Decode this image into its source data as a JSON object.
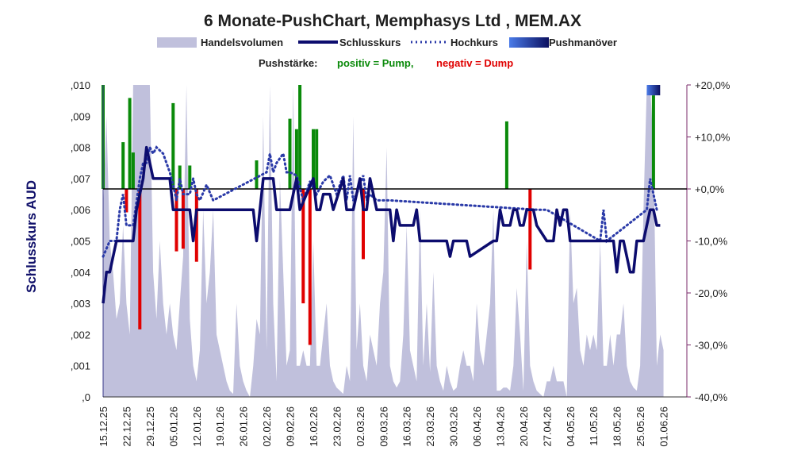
{
  "chart_data": {
    "type": "combo",
    "title": "6 Monate-PushChart, Memphasys Ltd , MEM.AX",
    "legend": [
      {
        "label": "Handelsvolumen",
        "kind": "area",
        "color": "#c0c0dc"
      },
      {
        "label": "Schlusskurs",
        "kind": "line",
        "color": "#0c0c6e"
      },
      {
        "label": "Hochkurs",
        "kind": "dotted",
        "color": "#2a3aa8"
      },
      {
        "label": "Pushmanöver",
        "kind": "gradient",
        "color": "#1a237e"
      }
    ],
    "pushstaerke": {
      "label": "Pushstärke:",
      "positive": "positiv = Pump,",
      "negative": "negativ = Dump",
      "pos_color": "#0a8a0a",
      "neg_color": "#e00000"
    },
    "ylabel": "Schlusskurs AUD",
    "y_left": {
      "min": 0,
      "max": 0.01,
      "ticks": [
        ",0",
        ",001",
        ",002",
        ",003",
        ",004",
        ",005",
        ",006",
        ",007",
        ",008",
        ",009",
        ",010"
      ]
    },
    "y_right": {
      "min": -40,
      "max": 20,
      "ticks": [
        "-40,0%",
        "-30,0%",
        "-20,0%",
        "-10,0%",
        "+0,0%",
        "+10,0%",
        "+20,0%"
      ]
    },
    "x_labels": [
      "15.12.25",
      "22.12.25",
      "29.12.25",
      "05.01.26",
      "12.01.26",
      "19.01.26",
      "26.01.26",
      "02.02.26",
      "09.02.26",
      "16.02.26",
      "23.02.26",
      "02.03.26",
      "09.03.26",
      "16.03.26",
      "23.03.26",
      "30.03.26",
      "06.04.26",
      "13.04.26",
      "20.04.26",
      "27.04.26",
      "04.05.26",
      "11.05.26",
      "18.05.26",
      "25.05.26",
      "01.06.26"
    ],
    "x_day_span": [
      0,
      175
    ],
    "close": [
      [
        0,
        0.003
      ],
      [
        1,
        0.004
      ],
      [
        2,
        0.004
      ],
      [
        3,
        0.0045
      ],
      [
        4,
        0.005
      ],
      [
        7,
        0.005
      ],
      [
        9,
        0.005
      ],
      [
        10,
        0.006
      ],
      [
        12,
        0.007
      ],
      [
        13,
        0.008
      ],
      [
        14,
        0.0075
      ],
      [
        15,
        0.007
      ],
      [
        20,
        0.007
      ],
      [
        21,
        0.006
      ],
      [
        26,
        0.006
      ],
      [
        27,
        0.005
      ],
      [
        28,
        0.006
      ],
      [
        45,
        0.006
      ],
      [
        46,
        0.005
      ],
      [
        48,
        0.007
      ],
      [
        51,
        0.007
      ],
      [
        52,
        0.006
      ],
      [
        56,
        0.006
      ],
      [
        58,
        0.007
      ],
      [
        59,
        0.006
      ],
      [
        61,
        0.0065
      ],
      [
        63,
        0.007
      ],
      [
        64,
        0.006
      ],
      [
        65,
        0.006
      ],
      [
        66,
        0.0065
      ],
      [
        68,
        0.0065
      ],
      [
        69,
        0.006
      ],
      [
        72,
        0.007
      ],
      [
        73,
        0.006
      ],
      [
        75,
        0.006
      ],
      [
        77,
        0.007
      ],
      [
        78,
        0.006
      ],
      [
        79,
        0.006
      ],
      [
        80,
        0.007
      ],
      [
        82,
        0.006
      ],
      [
        86,
        0.006
      ],
      [
        87,
        0.005
      ],
      [
        88,
        0.006
      ],
      [
        89,
        0.0055
      ],
      [
        93,
        0.0055
      ],
      [
        94,
        0.006
      ],
      [
        95,
        0.005
      ],
      [
        103,
        0.005
      ],
      [
        104,
        0.0045
      ],
      [
        105,
        0.005
      ],
      [
        109,
        0.005
      ],
      [
        110,
        0.0045
      ],
      [
        117,
        0.005
      ],
      [
        118,
        0.005
      ],
      [
        119,
        0.006
      ],
      [
        120,
        0.0055
      ],
      [
        122,
        0.0055
      ],
      [
        123,
        0.006
      ],
      [
        124,
        0.006
      ],
      [
        125,
        0.0055
      ],
      [
        126,
        0.0055
      ],
      [
        127,
        0.006
      ],
      [
        129,
        0.006
      ],
      [
        130,
        0.0055
      ],
      [
        133,
        0.005
      ],
      [
        134,
        0.005
      ],
      [
        135,
        0.005
      ],
      [
        136,
        0.006
      ],
      [
        137,
        0.0055
      ],
      [
        138,
        0.006
      ],
      [
        139,
        0.006
      ],
      [
        140,
        0.005
      ],
      [
        147,
        0.005
      ],
      [
        148,
        0.005
      ],
      [
        149,
        0.005
      ],
      [
        150,
        0.005
      ],
      [
        153,
        0.005
      ],
      [
        154,
        0.004
      ],
      [
        155,
        0.005
      ],
      [
        156,
        0.005
      ],
      [
        157,
        0.0045
      ],
      [
        158,
        0.004
      ],
      [
        159,
        0.004
      ],
      [
        160,
        0.005
      ],
      [
        162,
        0.005
      ],
      [
        164,
        0.006
      ],
      [
        165,
        0.006
      ],
      [
        166,
        0.0055
      ],
      [
        167,
        0.0055
      ]
    ],
    "high": [
      [
        0,
        0.0045
      ],
      [
        2,
        0.005
      ],
      [
        4,
        0.005
      ],
      [
        5,
        0.006
      ],
      [
        6,
        0.0065
      ],
      [
        7,
        0.0055
      ],
      [
        9,
        0.0055
      ],
      [
        11,
        0.007
      ],
      [
        12,
        0.0075
      ],
      [
        13,
        0.0075
      ],
      [
        14,
        0.008
      ],
      [
        15,
        0.0078
      ],
      [
        16,
        0.008
      ],
      [
        18,
        0.0078
      ],
      [
        19,
        0.0075
      ],
      [
        20,
        0.0072
      ],
      [
        21,
        0.0068
      ],
      [
        22,
        0.0063
      ],
      [
        23,
        0.007
      ],
      [
        24,
        0.0065
      ],
      [
        26,
        0.0065
      ],
      [
        27,
        0.007
      ],
      [
        28,
        0.0065
      ],
      [
        29,
        0.0063
      ],
      [
        31,
        0.0068
      ],
      [
        33,
        0.0063
      ],
      [
        49,
        0.0072
      ],
      [
        50,
        0.0078
      ],
      [
        51,
        0.0072
      ],
      [
        52,
        0.0075
      ],
      [
        54,
        0.0078
      ],
      [
        55,
        0.0072
      ],
      [
        56,
        0.0072
      ],
      [
        58,
        0.0071
      ],
      [
        60,
        0.0063
      ],
      [
        62,
        0.0069
      ],
      [
        64,
        0.0065
      ],
      [
        66,
        0.0069
      ],
      [
        68,
        0.0071
      ],
      [
        70,
        0.0065
      ],
      [
        72,
        0.0071
      ],
      [
        73,
        0.0063
      ],
      [
        74,
        0.0071
      ],
      [
        75,
        0.0063
      ],
      [
        76,
        0.0065
      ],
      [
        78,
        0.0071
      ],
      [
        79,
        0.0063
      ],
      [
        80,
        0.0065
      ],
      [
        82,
        0.0063
      ],
      [
        84,
        0.0063
      ],
      [
        86,
        0.0063
      ],
      [
        130,
        0.006
      ],
      [
        133,
        0.006
      ],
      [
        149,
        0.005
      ],
      [
        150,
        0.006
      ],
      [
        151,
        0.005
      ],
      [
        163,
        0.006
      ],
      [
        164,
        0.007
      ],
      [
        165,
        0.0065
      ],
      [
        166,
        0.006
      ]
    ],
    "volume": [
      [
        0,
        0.6
      ],
      [
        1,
        0.9
      ],
      [
        2,
        0.5
      ],
      [
        3,
        0.4
      ],
      [
        4,
        0.25
      ],
      [
        5,
        0.3
      ],
      [
        6,
        0.55
      ],
      [
        7,
        0.3
      ],
      [
        8,
        0.2
      ],
      [
        9,
        1
      ],
      [
        10,
        1
      ],
      [
        11,
        1
      ],
      [
        12,
        1
      ],
      [
        13,
        1
      ],
      [
        14,
        1
      ],
      [
        15,
        0.4
      ],
      [
        16,
        0.25
      ],
      [
        17,
        0.5
      ],
      [
        18,
        0.3
      ],
      [
        19,
        0.2
      ],
      [
        20,
        0.3
      ],
      [
        21,
        0.2
      ],
      [
        22,
        0.15
      ],
      [
        23,
        0.3
      ],
      [
        24,
        0.45
      ],
      [
        25,
        1
      ],
      [
        26,
        0.25
      ],
      [
        27,
        0.1
      ],
      [
        28,
        0.05
      ],
      [
        29,
        0.15
      ],
      [
        30,
        0.6
      ],
      [
        31,
        0.3
      ],
      [
        32,
        0.4
      ],
      [
        33,
        0.6
      ],
      [
        34,
        0.2
      ],
      [
        35,
        0.15
      ],
      [
        36,
        0.1
      ],
      [
        37,
        0.05
      ],
      [
        38,
        0.02
      ],
      [
        39,
        0.01
      ],
      [
        40,
        0.3
      ],
      [
        41,
        0.1
      ],
      [
        42,
        0.05
      ],
      [
        43,
        0.02
      ],
      [
        44,
        0.0
      ],
      [
        45,
        0.1
      ],
      [
        46,
        0.25
      ],
      [
        47,
        0.2
      ],
      [
        48,
        0.9
      ],
      [
        49,
        0.15
      ],
      [
        50,
        1
      ],
      [
        51,
        0.3
      ],
      [
        52,
        0.05
      ],
      [
        53,
        0.7
      ],
      [
        54,
        0.4
      ],
      [
        55,
        0.1
      ],
      [
        56,
        0.15
      ],
      [
        57,
        1
      ],
      [
        58,
        0.1
      ],
      [
        59,
        0.1
      ],
      [
        60,
        0.15
      ],
      [
        61,
        0.1
      ],
      [
        62,
        0.1
      ],
      [
        63,
        0.5
      ],
      [
        64,
        0.1
      ],
      [
        65,
        0.1
      ],
      [
        66,
        0.2
      ],
      [
        67,
        0.3
      ],
      [
        68,
        0.1
      ],
      [
        69,
        0.05
      ],
      [
        70,
        0.03
      ],
      [
        71,
        0.02
      ],
      [
        72,
        0.01
      ],
      [
        73,
        0.1
      ],
      [
        74,
        0.05
      ],
      [
        75,
        0.9
      ],
      [
        76,
        0.15
      ],
      [
        77,
        0.3
      ],
      [
        78,
        0.1
      ],
      [
        79,
        0.05
      ],
      [
        80,
        0.2
      ],
      [
        81,
        0.15
      ],
      [
        82,
        0.1
      ],
      [
        83,
        0.3
      ],
      [
        84,
        0.4
      ],
      [
        85,
        0.8
      ],
      [
        86,
        0.1
      ],
      [
        87,
        0.05
      ],
      [
        88,
        0.03
      ],
      [
        89,
        0.05
      ],
      [
        90,
        0.2
      ],
      [
        91,
        0.55
      ],
      [
        92,
        0.15
      ],
      [
        93,
        0.1
      ],
      [
        94,
        0.05
      ],
      [
        95,
        0.6
      ],
      [
        96,
        0.1
      ],
      [
        97,
        0.3
      ],
      [
        98,
        0.08
      ],
      [
        99,
        0.4
      ],
      [
        100,
        0.1
      ],
      [
        101,
        0.05
      ],
      [
        102,
        0.02
      ],
      [
        103,
        0.1
      ],
      [
        104,
        0.05
      ],
      [
        105,
        0.02
      ],
      [
        106,
        0.03
      ],
      [
        107,
        0.1
      ],
      [
        108,
        0.15
      ],
      [
        109,
        0.1
      ],
      [
        110,
        0.1
      ],
      [
        111,
        0.05
      ],
      [
        112,
        0.3
      ],
      [
        113,
        0.15
      ],
      [
        114,
        0.1
      ],
      [
        115,
        0.2
      ],
      [
        116,
        0.3
      ],
      [
        117,
        0.6
      ],
      [
        118,
        0.02
      ],
      [
        119,
        0.02
      ],
      [
        120,
        0.03
      ],
      [
        121,
        0.03
      ],
      [
        122,
        0.02
      ],
      [
        123,
        0.1
      ],
      [
        124,
        0.35
      ],
      [
        125,
        0.2
      ],
      [
        126,
        0.02
      ],
      [
        127,
        0.5
      ],
      [
        128,
        0.1
      ],
      [
        129,
        0.05
      ],
      [
        130,
        0.02
      ],
      [
        131,
        0.01
      ],
      [
        132,
        0.0
      ],
      [
        133,
        0.05
      ],
      [
        134,
        0.05
      ],
      [
        135,
        0.1
      ],
      [
        136,
        0.05
      ],
      [
        137,
        0.05
      ],
      [
        138,
        0.05
      ],
      [
        139,
        0.0
      ],
      [
        140,
        0.6
      ],
      [
        141,
        0.3
      ],
      [
        142,
        0.35
      ],
      [
        143,
        0.15
      ],
      [
        144,
        0.1
      ],
      [
        145,
        0.2
      ],
      [
        146,
        0.15
      ],
      [
        147,
        0.2
      ],
      [
        148,
        0.15
      ],
      [
        149,
        0.5
      ],
      [
        150,
        0.1
      ],
      [
        151,
        0.1
      ],
      [
        152,
        0.2
      ],
      [
        153,
        0.1
      ],
      [
        154,
        0.2
      ],
      [
        155,
        0.2
      ],
      [
        156,
        0.3
      ],
      [
        157,
        0.1
      ],
      [
        158,
        0.05
      ],
      [
        159,
        0.03
      ],
      [
        160,
        0.02
      ],
      [
        161,
        0.1
      ],
      [
        162,
        0.6
      ],
      [
        163,
        1
      ],
      [
        164,
        1
      ],
      [
        165,
        0.8
      ],
      [
        166,
        0.1
      ],
      [
        167,
        0.2
      ],
      [
        168,
        0.15
      ]
    ],
    "push_bars": [
      {
        "day": 0,
        "pct": 20
      },
      {
        "day": 6,
        "pct": 9
      },
      {
        "day": 7,
        "pct": -4.5
      },
      {
        "day": 8,
        "pct": 17.5
      },
      {
        "day": 9,
        "pct": 7
      },
      {
        "day": 11,
        "pct": -27
      },
      {
        "day": 21,
        "pct": 16.5
      },
      {
        "day": 22,
        "pct": -12
      },
      {
        "day": 23,
        "pct": 4.5
      },
      {
        "day": 24,
        "pct": -11.5
      },
      {
        "day": 26,
        "pct": 4.5
      },
      {
        "day": 28,
        "pct": -14
      },
      {
        "day": 46,
        "pct": 5.5
      },
      {
        "day": 56,
        "pct": 13.5
      },
      {
        "day": 58,
        "pct": 11.5
      },
      {
        "day": 59,
        "pct": 20
      },
      {
        "day": 60,
        "pct": -22
      },
      {
        "day": 62,
        "pct": -30
      },
      {
        "day": 63,
        "pct": 11.5
      },
      {
        "day": 64,
        "pct": 11.5
      },
      {
        "day": 78,
        "pct": -13.5
      },
      {
        "day": 121,
        "pct": 13
      },
      {
        "day": 128,
        "pct": -15.5
      },
      {
        "day": 165,
        "pct": 18
      }
    ],
    "push_manoever": [
      {
        "day_start": 163,
        "day_end": 167,
        "pct_min": 18,
        "pct_max": 20
      }
    ],
    "baseline_pct": 0
  }
}
